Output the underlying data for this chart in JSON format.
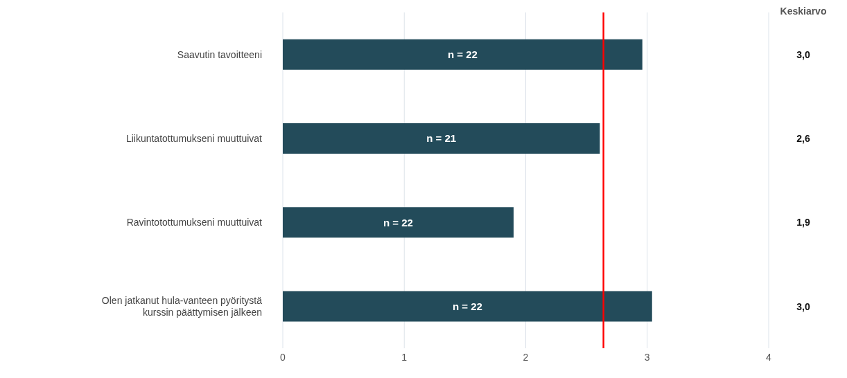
{
  "chart_data": {
    "type": "bar",
    "orientation": "horizontal",
    "categories": [
      "Saavutin tavoitteeni",
      "Liikuntatottumukseni muuttuivat",
      "Ravintotottumukseni muuttuivat",
      "Olen jatkanut hula-vanteen pyöritystä kurssin päättymisen jälkeen"
    ],
    "values": [
      2.96,
      2.61,
      1.9,
      3.04
    ],
    "value_labels": [
      "3,0",
      "2,6",
      "1,9",
      "3,0"
    ],
    "color": "#234b5a",
    "xlim": [
      0,
      4
    ],
    "xticks": [
      0,
      1,
      2,
      3,
      4
    ],
    "grid": "x",
    "ref_lines": [
      {
        "axis": "x",
        "value": 2.64,
        "color": "#ff0000"
      }
    ],
    "annotations": [
      "Keskiarvo",
      "n = 22",
      "n = 21",
      "n = 22",
      "n = 22"
    ]
  }
}
